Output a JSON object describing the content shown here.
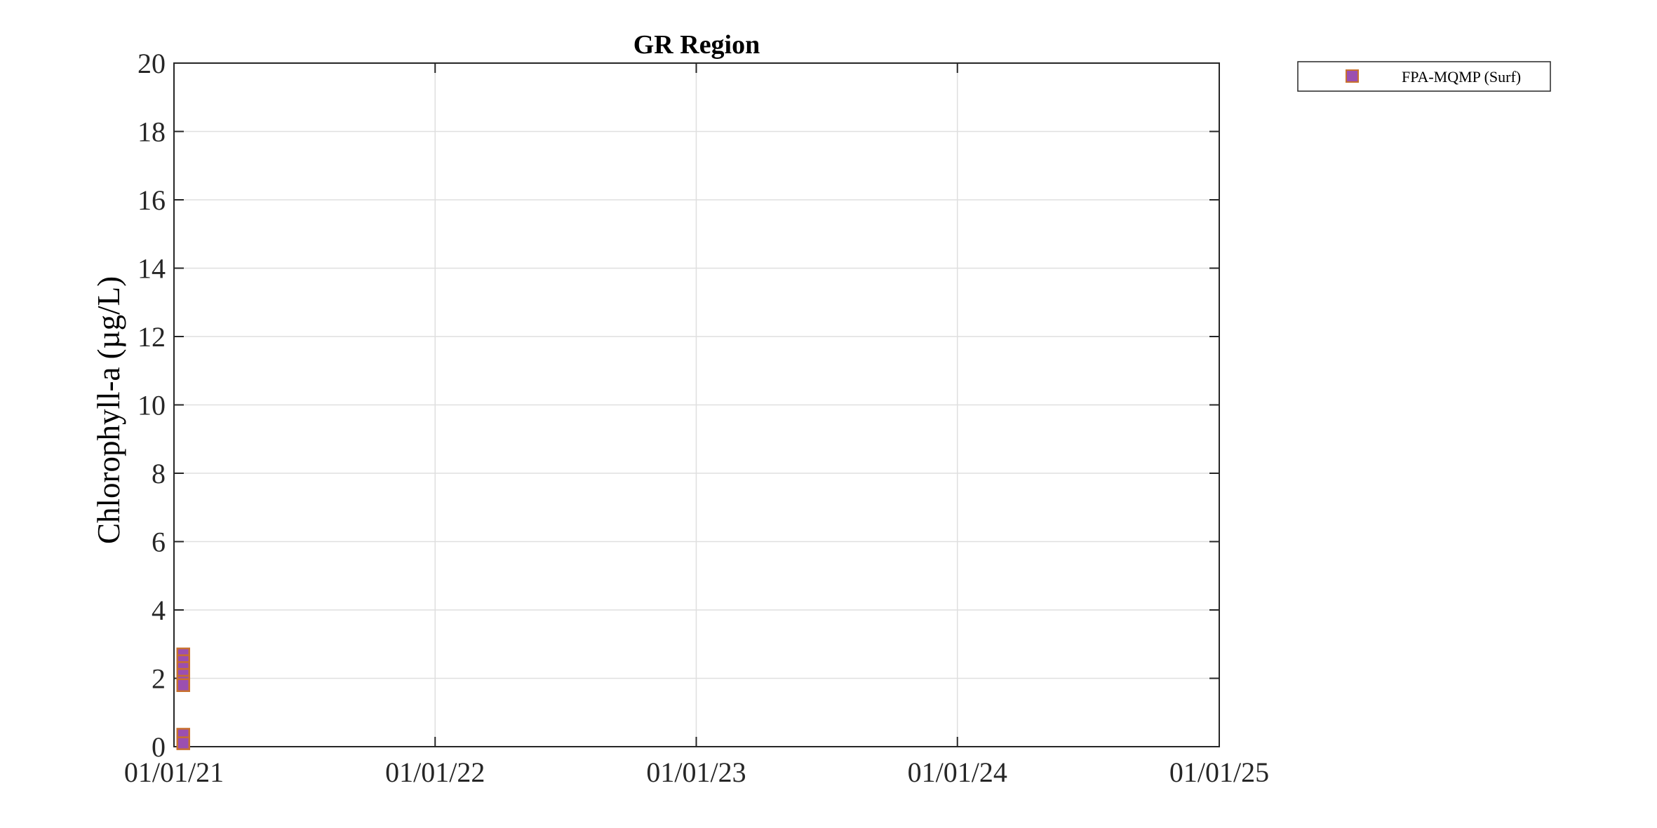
{
  "chart_data": {
    "type": "scatter",
    "title": "GR Region",
    "ylabel": "Chlorophyll-a (µg/L)",
    "xlabel": "",
    "x_type": "date",
    "xlim": [
      "2021-01-01",
      "2025-01-01"
    ],
    "ylim": [
      0,
      20
    ],
    "x_ticks": [
      "2021-01-01",
      "2022-01-01",
      "2023-01-01",
      "2024-01-01",
      "2025-01-01"
    ],
    "x_tick_labels": [
      "01/01/21",
      "01/01/22",
      "01/01/23",
      "01/01/24",
      "01/01/25"
    ],
    "y_ticks": [
      0,
      2,
      4,
      6,
      8,
      10,
      12,
      14,
      16,
      18,
      20
    ],
    "y_tick_labels": [
      "0",
      "2",
      "4",
      "6",
      "8",
      "10",
      "12",
      "14",
      "16",
      "18",
      "20"
    ],
    "grid": true,
    "legend_position": "outside-top-right",
    "series": [
      {
        "name": "FPA-MQMP (Surf)",
        "marker": "square",
        "fill_color": "#9b4fb0",
        "edge_color": "#c8702e",
        "points": [
          {
            "x": "2021-01-14",
            "y": 2.7
          },
          {
            "x": "2021-01-14",
            "y": 2.5
          },
          {
            "x": "2021-01-14",
            "y": 2.3
          },
          {
            "x": "2021-01-14",
            "y": 2.1
          },
          {
            "x": "2021-01-14",
            "y": 1.9
          },
          {
            "x": "2021-01-14",
            "y": 1.8
          },
          {
            "x": "2021-01-14",
            "y": 0.35
          },
          {
            "x": "2021-01-14",
            "y": 0.1
          }
        ]
      }
    ]
  },
  "colors": {
    "axis": "#262626",
    "grid": "#dfdfdf",
    "background": "#ffffff"
  }
}
